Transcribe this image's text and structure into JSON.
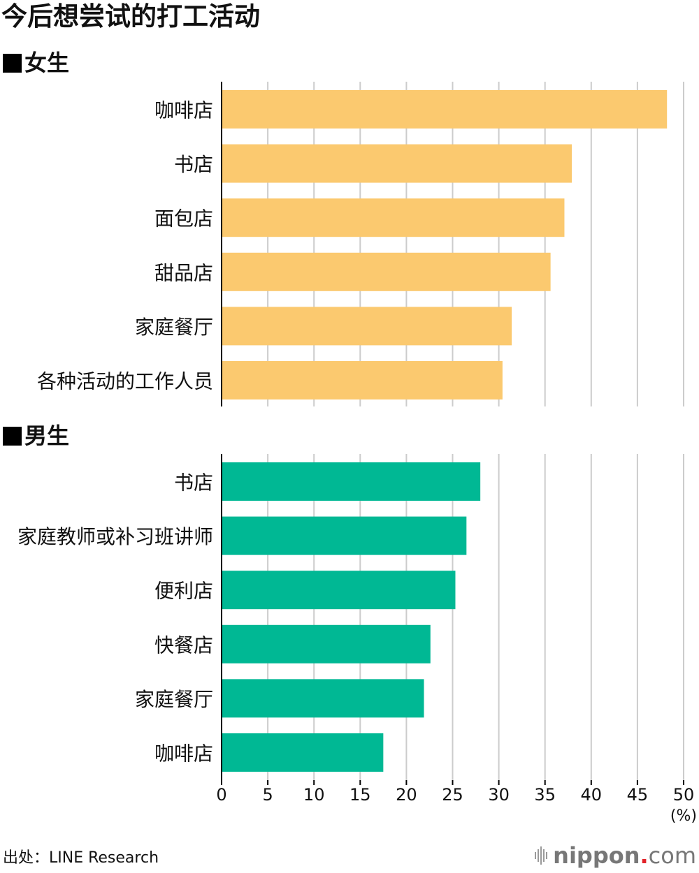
{
  "title": "今后想尝试的打工活动",
  "source": "出处：LINE Research",
  "brand": {
    "name": "nippon",
    "dot": ".",
    "tld": "com"
  },
  "unit": "(%)",
  "colors": {
    "female": "#fbc96f",
    "male": "#00b894",
    "grid": "#cccccc",
    "axis": "#000000"
  },
  "chart_data": [
    {
      "type": "bar",
      "orientation": "horizontal",
      "title": "■女生",
      "categories": [
        "咖啡店",
        "书店",
        "面包店",
        "甜品店",
        "家庭餐厅",
        "各种活动的工作人员"
      ],
      "values": [
        48.2,
        37.9,
        37.1,
        35.6,
        31.4,
        30.4
      ],
      "xlim": [
        0,
        50
      ],
      "grid": true
    },
    {
      "type": "bar",
      "orientation": "horizontal",
      "title": "■男生",
      "categories": [
        "书店",
        "家庭教师或补习班讲师",
        "便利店",
        "快餐店",
        "家庭餐厅",
        "咖啡店"
      ],
      "values": [
        28.0,
        26.5,
        25.3,
        22.6,
        21.9,
        17.5
      ],
      "xlim": [
        0,
        50
      ],
      "xticks": [
        0,
        5,
        10,
        15,
        20,
        25,
        30,
        35,
        40,
        45,
        50
      ],
      "xlabel": "(%)",
      "grid": true
    }
  ]
}
